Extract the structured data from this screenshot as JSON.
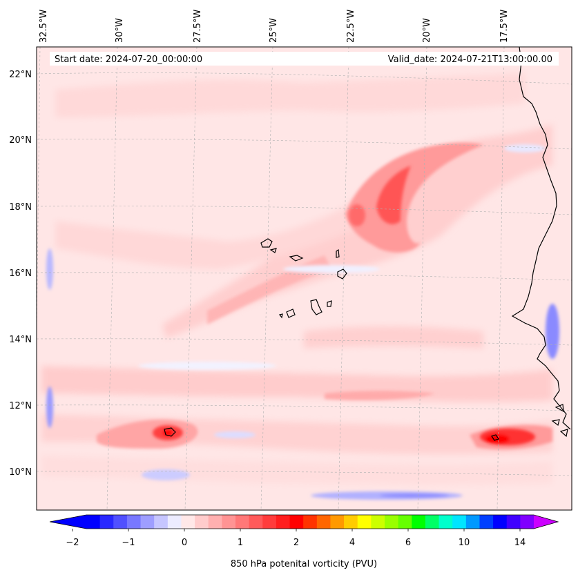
{
  "map": {
    "start_date": "Start date: 2024-07-20_00:00:00",
    "valid_date": "Valid_date: 2024-07-21T13:00:00.00",
    "lon_labels": [
      "32.5°W",
      "30°W",
      "27.5°W",
      "25°W",
      "22.5°W",
      "20°W",
      "17.5°W"
    ],
    "lat_labels": [
      "22°N",
      "20°N",
      "18°N",
      "16°N",
      "14°N",
      "12°N",
      "10°N"
    ],
    "gridlines": true,
    "features": [
      "Cabo Verde islands",
      "West African coastline"
    ]
  },
  "colorbar": {
    "label": "850 hPa potenital vorticity (PVU)",
    "ticks": [
      "−2",
      "−1",
      "0",
      "1",
      "2",
      "4",
      "6",
      "10",
      "14"
    ],
    "extend": "both",
    "colors": [
      "#0000ff",
      "#2828ff",
      "#5050ff",
      "#7878ff",
      "#9e9eff",
      "#c6c6ff",
      "#ececff",
      "#ffe8e8",
      "#ffcccc",
      "#ffb0b0",
      "#ff9494",
      "#ff7878",
      "#ff5a5a",
      "#ff3c3c",
      "#ff1e1e",
      "#ff0000",
      "#ff3300",
      "#ff6600",
      "#ff9900",
      "#ffcc00",
      "#ffff00",
      "#ccff00",
      "#99ff00",
      "#66ff00",
      "#00ff00",
      "#00ff66",
      "#00ffcc",
      "#00e5ff",
      "#0099ff",
      "#0040ff",
      "#0000ff",
      "#4000ff",
      "#8000ff"
    ],
    "under_color": "#0000ff",
    "over_color": "#cc00ff"
  }
}
